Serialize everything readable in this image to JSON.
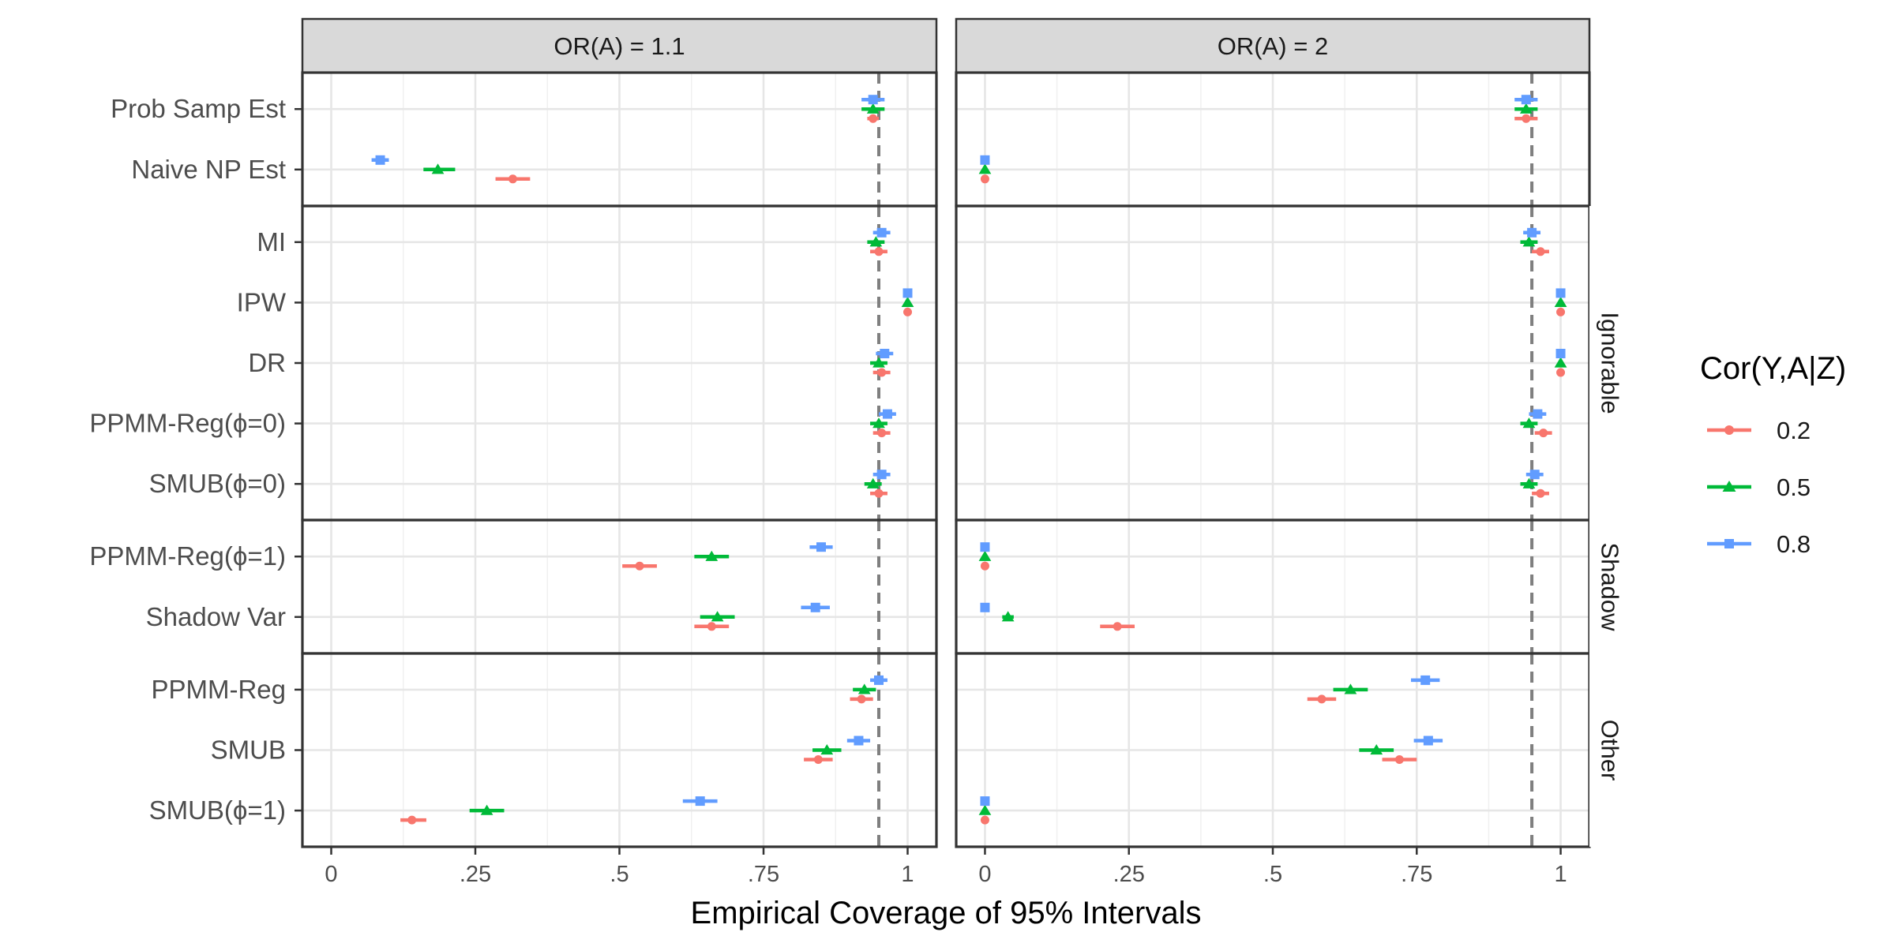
{
  "chart_data": {
    "type": "scatter",
    "subtype": "point-range faceted dot plot",
    "xlabel": "Empirical Coverage of 95% Intervals",
    "xlim": [
      -0.05,
      1.05
    ],
    "xticks": [
      0,
      0.25,
      0.5,
      0.75,
      1
    ],
    "xtick_labels": [
      "0",
      ".25",
      ".5",
      ".75",
      "1"
    ],
    "reference_line": {
      "x": 0.95,
      "style": "dashed",
      "color": "#7f7f7f"
    },
    "grid": true,
    "legend": {
      "title": "Cor(Y,A|Z)",
      "position": "right",
      "entries": [
        {
          "label": "0.2",
          "color": "#F8766D",
          "shape": "circle"
        },
        {
          "label": "0.5",
          "color": "#00BA38",
          "shape": "triangle"
        },
        {
          "label": "0.8",
          "color": "#619CFF",
          "shape": "square"
        }
      ]
    },
    "columns": [
      "OR(A) = 1.1",
      "OR(A) = 2"
    ],
    "row_groups": [
      {
        "label": "",
        "methods": [
          "Prob Samp Est",
          "Naive NP Est"
        ]
      },
      {
        "label": "Ignorable",
        "methods": [
          "MI",
          "IPW",
          "DR",
          "PPMM-Reg(ϕ=0)",
          "SMUB(ϕ=0)"
        ]
      },
      {
        "label": "Shadow",
        "methods": [
          "PPMM-Reg(ϕ=1)",
          "Shadow Var"
        ]
      },
      {
        "label": "Other",
        "methods": [
          "PPMM-Reg",
          "SMUB",
          "SMUB(ϕ=1)"
        ]
      }
    ],
    "series_order": [
      "0.2",
      "0.5",
      "0.8"
    ],
    "points": [
      {
        "method": "Prob Samp Est",
        "panel": 0,
        "values": [
          [
            0.94,
            0.93,
            0.95
          ],
          [
            0.94,
            0.92,
            0.96
          ],
          [
            0.94,
            0.92,
            0.96
          ]
        ]
      },
      {
        "method": "Prob Samp Est",
        "panel": 1,
        "values": [
          [
            0.94,
            0.92,
            0.96
          ],
          [
            0.94,
            0.92,
            0.96
          ],
          [
            0.94,
            0.92,
            0.96
          ]
        ]
      },
      {
        "method": "Naive NP Est",
        "panel": 0,
        "values": [
          [
            0.315,
            0.285,
            0.345
          ],
          [
            0.185,
            0.16,
            0.215
          ],
          [
            0.085,
            0.07,
            0.1
          ]
        ]
      },
      {
        "method": "Naive NP Est",
        "panel": 1,
        "values": [
          [
            0.0,
            0.0,
            0.0
          ],
          [
            0.0,
            0.0,
            0.0
          ],
          [
            0.0,
            0.0,
            0.0
          ]
        ]
      },
      {
        "method": "MI",
        "panel": 0,
        "values": [
          [
            0.95,
            0.935,
            0.965
          ],
          [
            0.945,
            0.93,
            0.96
          ],
          [
            0.955,
            0.94,
            0.97
          ]
        ]
      },
      {
        "method": "MI",
        "panel": 1,
        "values": [
          [
            0.965,
            0.95,
            0.98
          ],
          [
            0.945,
            0.93,
            0.96
          ],
          [
            0.95,
            0.935,
            0.965
          ]
        ]
      },
      {
        "method": "IPW",
        "panel": 0,
        "values": [
          [
            1.0,
            1.0,
            1.0
          ],
          [
            1.0,
            1.0,
            1.0
          ],
          [
            1.0,
            1.0,
            1.0
          ]
        ]
      },
      {
        "method": "IPW",
        "panel": 1,
        "values": [
          [
            1.0,
            1.0,
            1.0
          ],
          [
            1.0,
            1.0,
            1.0
          ],
          [
            1.0,
            1.0,
            1.0
          ]
        ]
      },
      {
        "method": "DR",
        "panel": 0,
        "values": [
          [
            0.955,
            0.94,
            0.97
          ],
          [
            0.95,
            0.935,
            0.965
          ],
          [
            0.96,
            0.945,
            0.975
          ]
        ]
      },
      {
        "method": "DR",
        "panel": 1,
        "values": [
          [
            1.0,
            1.0,
            1.0
          ],
          [
            1.0,
            1.0,
            1.0
          ],
          [
            1.0,
            1.0,
            1.0
          ]
        ]
      },
      {
        "method": "PPMM-Reg(ϕ=0)",
        "panel": 0,
        "values": [
          [
            0.955,
            0.94,
            0.97
          ],
          [
            0.95,
            0.935,
            0.965
          ],
          [
            0.965,
            0.95,
            0.98
          ]
        ]
      },
      {
        "method": "PPMM-Reg(ϕ=0)",
        "panel": 1,
        "values": [
          [
            0.97,
            0.955,
            0.985
          ],
          [
            0.945,
            0.93,
            0.96
          ],
          [
            0.96,
            0.945,
            0.975
          ]
        ]
      },
      {
        "method": "SMUB(ϕ=0)",
        "panel": 0,
        "values": [
          [
            0.95,
            0.935,
            0.965
          ],
          [
            0.94,
            0.925,
            0.955
          ],
          [
            0.955,
            0.94,
            0.97
          ]
        ]
      },
      {
        "method": "SMUB(ϕ=0)",
        "panel": 1,
        "values": [
          [
            0.965,
            0.95,
            0.98
          ],
          [
            0.945,
            0.93,
            0.96
          ],
          [
            0.955,
            0.94,
            0.97
          ]
        ]
      },
      {
        "method": "PPMM-Reg(ϕ=1)",
        "panel": 0,
        "values": [
          [
            0.535,
            0.505,
            0.565
          ],
          [
            0.66,
            0.63,
            0.69
          ],
          [
            0.85,
            0.83,
            0.87
          ]
        ]
      },
      {
        "method": "PPMM-Reg(ϕ=1)",
        "panel": 1,
        "values": [
          [
            0.0,
            0.0,
            0.0
          ],
          [
            0.0,
            0.0,
            0.0
          ],
          [
            0.0,
            0.0,
            0.0
          ]
        ]
      },
      {
        "method": "Shadow Var",
        "panel": 0,
        "values": [
          [
            0.66,
            0.63,
            0.69
          ],
          [
            0.67,
            0.64,
            0.7
          ],
          [
            0.84,
            0.815,
            0.865
          ]
        ]
      },
      {
        "method": "Shadow Var",
        "panel": 1,
        "values": [
          [
            0.23,
            0.2,
            0.26
          ],
          [
            0.04,
            0.03,
            0.05
          ],
          [
            0.0,
            0.0,
            0.0
          ]
        ]
      },
      {
        "method": "PPMM-Reg",
        "panel": 0,
        "values": [
          [
            0.92,
            0.9,
            0.94
          ],
          [
            0.925,
            0.905,
            0.945
          ],
          [
            0.95,
            0.935,
            0.965
          ]
        ]
      },
      {
        "method": "PPMM-Reg",
        "panel": 1,
        "values": [
          [
            0.585,
            0.56,
            0.61
          ],
          [
            0.635,
            0.605,
            0.665
          ],
          [
            0.765,
            0.74,
            0.79
          ]
        ]
      },
      {
        "method": "SMUB",
        "panel": 0,
        "values": [
          [
            0.845,
            0.82,
            0.87
          ],
          [
            0.86,
            0.835,
            0.885
          ],
          [
            0.915,
            0.895,
            0.935
          ]
        ]
      },
      {
        "method": "SMUB",
        "panel": 1,
        "values": [
          [
            0.72,
            0.69,
            0.75
          ],
          [
            0.68,
            0.65,
            0.71
          ],
          [
            0.77,
            0.745,
            0.795
          ]
        ]
      },
      {
        "method": "SMUB(ϕ=1)",
        "panel": 0,
        "values": [
          [
            0.14,
            0.12,
            0.165
          ],
          [
            0.27,
            0.24,
            0.3
          ],
          [
            0.64,
            0.61,
            0.67
          ]
        ]
      },
      {
        "method": "SMUB(ϕ=1)",
        "panel": 1,
        "values": [
          [
            0.0,
            0.0,
            0.0
          ],
          [
            0.0,
            0.0,
            0.0
          ],
          [
            0.0,
            0.0,
            0.0
          ]
        ]
      }
    ]
  }
}
